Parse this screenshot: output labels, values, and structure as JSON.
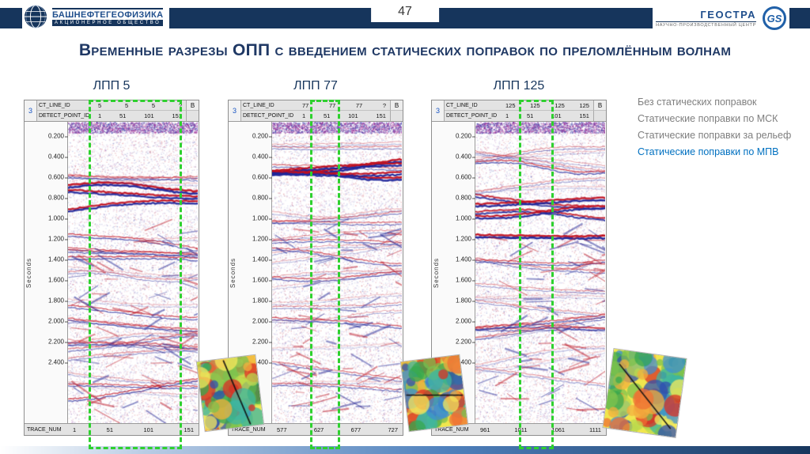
{
  "page_number": "47",
  "logo_left": {
    "company": "БАШНЕФТЕГЕОФИЗИКА",
    "subtitle": "АКЦИОНЕРНОЕ ОБЩЕСТВО"
  },
  "logo_right": {
    "org": "ГЕОСТРА",
    "subtitle": "НАУЧНО-ПРОИЗВОДСТВЕННЫЙ ЦЕНТР",
    "badge": "GS"
  },
  "title": "Временные разрезы ОПП с введением статических поправок по преломлённым волнам",
  "panels": [
    {
      "label": "ЛПП 5",
      "corner_left": "3",
      "corner_right": "В",
      "header_rows": [
        {
          "label": "CT_LINE_ID",
          "values": [
            "5",
            "5",
            "5",
            "?"
          ]
        },
        {
          "label": "DETECT_POINT_ID",
          "values": [
            "1",
            "51",
            "101",
            "151"
          ]
        }
      ],
      "y_axis": "Seconds",
      "time_ticks": [
        "0.200",
        "0.400",
        "0.600",
        "0.800",
        "1.000",
        "1.200",
        "1.400",
        "1.600",
        "1.800",
        "2.000",
        "2.200",
        "2.400"
      ],
      "footer": {
        "label": "TRACE_NUM",
        "values": [
          "1",
          "51",
          "101",
          "151"
        ]
      }
    },
    {
      "label": "ЛПП 77",
      "corner_left": "3",
      "corner_right": "В",
      "header_rows": [
        {
          "label": "CT_LINE_ID",
          "values": [
            "77",
            "77",
            "77",
            "?"
          ]
        },
        {
          "label": "DETECT_POINT_ID",
          "values": [
            "1",
            "51",
            "101",
            "151"
          ]
        }
      ],
      "y_axis": "Seconds",
      "time_ticks": [
        "0.200",
        "0.400",
        "0.600",
        "0.800",
        "1.000",
        "1.200",
        "1.400",
        "1.600",
        "1.800",
        "2.000",
        "2.200",
        "2.400"
      ],
      "footer": {
        "label": "TRACE_NUM",
        "values": [
          "577",
          "627",
          "677",
          "727"
        ]
      }
    },
    {
      "label": "ЛПП 125",
      "corner_left": "3",
      "corner_right": "В",
      "header_rows": [
        {
          "label": "CT_LINE_ID",
          "values": [
            "125",
            "125",
            "125",
            "125"
          ]
        },
        {
          "label": "DETECT_POINT_ID",
          "values": [
            "1",
            "51",
            "101",
            "151"
          ]
        }
      ],
      "y_axis": "Seconds",
      "time_ticks": [
        "0.200",
        "0.400",
        "0.600",
        "0.800",
        "1.000",
        "1.200",
        "1.400",
        "1.600",
        "1.800",
        "2.000",
        "2.200",
        "2.400"
      ],
      "footer": {
        "label": "TRACE_NUM",
        "values": [
          "961",
          "1011",
          "1061",
          "1111"
        ]
      }
    }
  ],
  "legend": {
    "items": [
      {
        "label": "Без статических поправок",
        "color": "#7f7f7f",
        "active": false
      },
      {
        "label": "Статические поправки по МСК",
        "color": "#7f7f7f",
        "active": false
      },
      {
        "label": "Статические поправки за рельеф",
        "color": "#7f7f7f",
        "active": false
      },
      {
        "label": "Статические поправки по МПВ",
        "color": "#0070c0",
        "active": true
      }
    ]
  },
  "colors": {
    "accent": "#1f3864",
    "header_bar": "#16355c",
    "highlight_green": "#2ed12e",
    "seismic_red": "#c01020",
    "seismic_blue": "#20269a"
  }
}
